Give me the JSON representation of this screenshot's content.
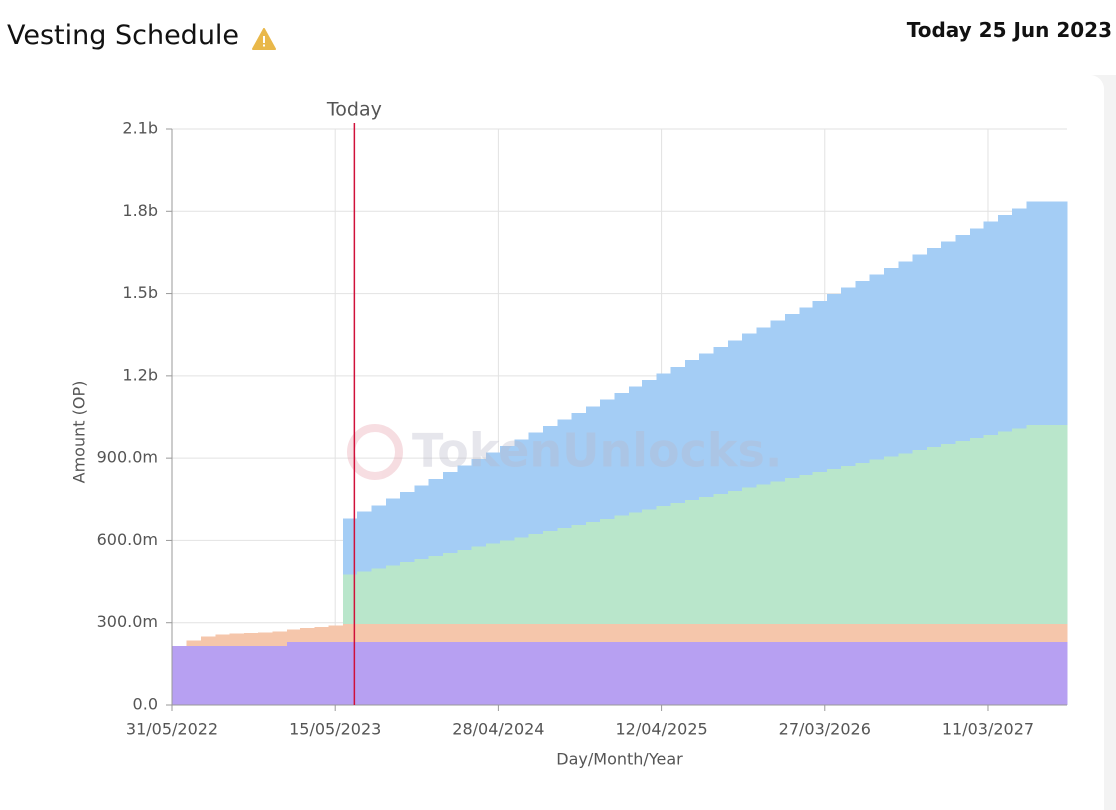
{
  "header": {
    "title": "Vesting Schedule",
    "today": "Today 25 Jun 2023"
  },
  "chart_data": {
    "type": "stacked-step-area",
    "x_label": "Day/Month/Year",
    "y_label": "Amount (OP)",
    "watermark": "TokenUnlocks.",
    "today_marker": {
      "label": "Today",
      "x": "2023-06-25",
      "color": "#d0103a"
    },
    "grid": true,
    "xlim": [
      "2022-05-31",
      "2027-08-27"
    ],
    "xticks": [
      {
        "value": "2022-05-31",
        "label": "31/05/2022"
      },
      {
        "value": "2023-05-15",
        "label": "15/05/2023"
      },
      {
        "value": "2024-04-28",
        "label": "28/04/2024"
      },
      {
        "value": "2025-04-12",
        "label": "12/04/2025"
      },
      {
        "value": "2026-03-27",
        "label": "27/03/2026"
      },
      {
        "value": "2027-03-11",
        "label": "11/03/2027"
      }
    ],
    "ylim": [
      0,
      2100000000
    ],
    "yticks": [
      {
        "value": 0,
        "label": "0.0"
      },
      {
        "value": 300000000,
        "label": "300.0m"
      },
      {
        "value": 600000000,
        "label": "600.0m"
      },
      {
        "value": 900000000,
        "label": "900.0m"
      },
      {
        "value": 1200000000,
        "label": "1.2b"
      },
      {
        "value": 1500000000,
        "label": "1.5b"
      },
      {
        "value": 1800000000,
        "label": "1.8b"
      },
      {
        "value": 2100000000,
        "label": "2.1b"
      }
    ],
    "x": [
      "2022-05-31",
      "2022-06-01",
      "2022-07-01",
      "2022-08-01",
      "2022-09-01",
      "2022-10-01",
      "2022-11-01",
      "2022-12-01",
      "2023-01-01",
      "2023-02-01",
      "2023-03-01",
      "2023-04-01",
      "2023-05-01",
      "2023-06-01",
      "2023-07-01",
      "2023-08-01",
      "2023-09-01",
      "2023-10-01",
      "2023-11-01",
      "2023-12-01",
      "2024-01-01",
      "2024-02-01",
      "2024-03-01",
      "2024-04-01",
      "2024-05-01",
      "2024-06-01",
      "2024-07-01",
      "2024-08-01",
      "2024-09-01",
      "2024-10-01",
      "2024-11-01",
      "2024-12-01",
      "2025-01-01",
      "2025-02-01",
      "2025-03-01",
      "2025-04-01",
      "2025-05-01",
      "2025-06-01",
      "2025-07-01",
      "2025-08-01",
      "2025-09-01",
      "2025-10-01",
      "2025-11-01",
      "2025-12-01",
      "2026-01-01",
      "2026-02-01",
      "2026-03-01",
      "2026-04-01",
      "2026-05-01",
      "2026-06-01",
      "2026-07-01",
      "2026-08-01",
      "2026-09-01",
      "2026-10-01",
      "2026-11-01",
      "2026-12-01",
      "2027-01-01",
      "2027-02-01",
      "2027-03-01",
      "2027-04-01",
      "2027-05-01",
      "2027-06-01",
      "2027-07-01",
      "2027-08-01"
    ],
    "series": [
      {
        "color": "#b7a0f2",
        "values": [
          215000000,
          215000000,
          215000000,
          215000000,
          215000000,
          215000000,
          215000000,
          215000000,
          215000000,
          230000000,
          230000000,
          230000000,
          230000000,
          230000000,
          230000000,
          230000000,
          230000000,
          230000000,
          230000000,
          230000000,
          230000000,
          230000000,
          230000000,
          230000000,
          230000000,
          230000000,
          230000000,
          230000000,
          230000000,
          230000000,
          230000000,
          230000000,
          230000000,
          230000000,
          230000000,
          230000000,
          230000000,
          230000000,
          230000000,
          230000000,
          230000000,
          230000000,
          230000000,
          230000000,
          230000000,
          230000000,
          230000000,
          230000000,
          230000000,
          230000000,
          230000000,
          230000000,
          230000000,
          230000000,
          230000000,
          230000000,
          230000000,
          230000000,
          230000000,
          230000000,
          230000000,
          230000000,
          230000000,
          230000000
        ]
      },
      {
        "color": "#f5c6ab",
        "values": [
          0,
          0,
          20000000,
          35000000,
          42000000,
          45000000,
          47000000,
          50000000,
          53000000,
          45000000,
          50000000,
          55000000,
          60000000,
          65000000,
          65000000,
          65000000,
          65000000,
          65000000,
          65000000,
          65000000,
          65000000,
          65000000,
          65000000,
          65000000,
          65000000,
          65000000,
          65000000,
          65000000,
          65000000,
          65000000,
          65000000,
          65000000,
          65000000,
          65000000,
          65000000,
          65000000,
          65000000,
          65000000,
          65000000,
          65000000,
          65000000,
          65000000,
          65000000,
          65000000,
          65000000,
          65000000,
          65000000,
          65000000,
          65000000,
          65000000,
          65000000,
          65000000,
          65000000,
          65000000,
          65000000,
          65000000,
          65000000,
          65000000,
          65000000,
          65000000,
          65000000,
          65000000,
          65000000,
          65000000
        ]
      },
      {
        "color": "#b9e6cb",
        "values": [
          0,
          0,
          0,
          0,
          0,
          0,
          0,
          0,
          0,
          0,
          0,
          0,
          0,
          180000000,
          192000000,
          203000000,
          214000000,
          226000000,
          237000000,
          248000000,
          260000000,
          271000000,
          282000000,
          294000000,
          305000000,
          316000000,
          328000000,
          339000000,
          350000000,
          362000000,
          373000000,
          384000000,
          396000000,
          407000000,
          418000000,
          430000000,
          441000000,
          452000000,
          464000000,
          475000000,
          486000000,
          498000000,
          509000000,
          520000000,
          532000000,
          543000000,
          554000000,
          566000000,
          577000000,
          588000000,
          600000000,
          611000000,
          622000000,
          634000000,
          645000000,
          656000000,
          668000000,
          679000000,
          690000000,
          702000000,
          713000000,
          725000000,
          725000000,
          725000000
        ]
      },
      {
        "color": "#a4cdf5",
        "values": [
          0,
          0,
          0,
          0,
          0,
          0,
          0,
          0,
          0,
          0,
          0,
          0,
          0,
          205000000,
          218000000,
          230000000,
          243000000,
          256000000,
          269000000,
          281000000,
          294000000,
          307000000,
          319000000,
          332000000,
          345000000,
          357000000,
          370000000,
          383000000,
          396000000,
          408000000,
          421000000,
          434000000,
          446000000,
          459000000,
          472000000,
          484000000,
          497000000,
          510000000,
          523000000,
          535000000,
          548000000,
          561000000,
          573000000,
          586000000,
          599000000,
          611000000,
          624000000,
          637000000,
          650000000,
          662000000,
          675000000,
          688000000,
          700000000,
          713000000,
          726000000,
          738000000,
          751000000,
          764000000,
          777000000,
          789000000,
          802000000,
          815000000,
          815000000,
          815000000
        ]
      }
    ]
  }
}
